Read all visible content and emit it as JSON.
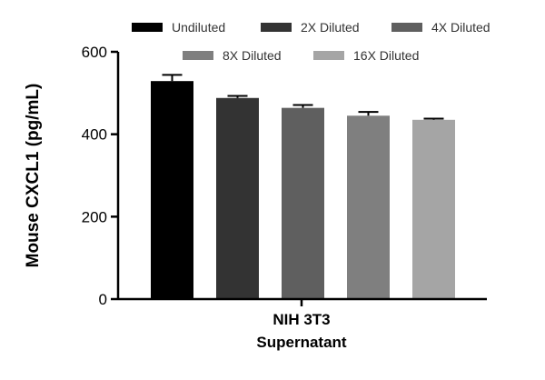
{
  "chart_data": {
    "type": "bar",
    "title": "",
    "ylabel": "Mouse CXCL1 (pg/mL)",
    "xlabel": [
      "NIH 3T3",
      "Supernatant"
    ],
    "ylim": [
      0,
      600
    ],
    "yticks": [
      0,
      200,
      400,
      600
    ],
    "series": [
      {
        "name": "Undiluted",
        "value": 529,
        "error": 15,
        "color": "#000000"
      },
      {
        "name": "2X Diluted",
        "value": 488,
        "error": 5,
        "color": "#333333"
      },
      {
        "name": "4X Diluted",
        "value": 464,
        "error": 7,
        "color": "#5f5f5f"
      },
      {
        "name": "8X Diluted",
        "value": 445,
        "error": 9,
        "color": "#7f7f7f"
      },
      {
        "name": "16X Diluted",
        "value": 435,
        "error": 3,
        "color": "#a5a5a5"
      }
    ],
    "legend_position": "top"
  }
}
